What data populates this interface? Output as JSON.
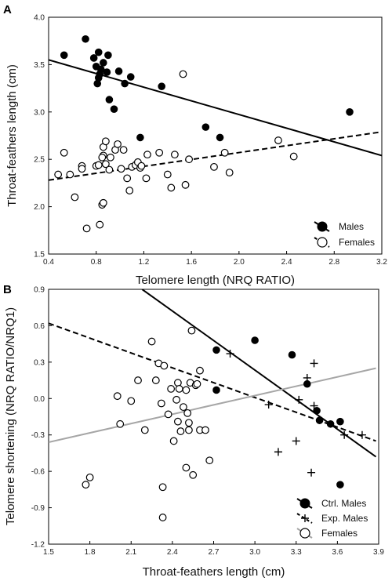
{
  "panels": {
    "A": {
      "label": "A"
    },
    "B": {
      "label": "B"
    }
  },
  "chart_data": [
    {
      "type": "scatter",
      "panel": "A",
      "xlabel": "Telomere length (NRQ RATIO)",
      "ylabel": "Throat-feathers length (cm)",
      "xlim": [
        0.4,
        3.2
      ],
      "ylim": [
        1.5,
        4.0
      ],
      "xticks": [
        "0.4",
        "0.8",
        "1.2",
        "1.6",
        "2.0",
        "2.4",
        "2.8",
        "3.2"
      ],
      "yticks": [
        "1.5",
        "2.0",
        "2.5",
        "3.0",
        "3.5",
        "4.0"
      ],
      "legend_position": "bottom-right",
      "series": [
        {
          "name": "Males",
          "marker": "filled-circle",
          "color": "#000000",
          "points": [
            [
              0.53,
              3.6
            ],
            [
              0.71,
              3.77
            ],
            [
              0.78,
              3.57
            ],
            [
              0.82,
              3.63
            ],
            [
              0.8,
              3.48
            ],
            [
              0.84,
              3.45
            ],
            [
              0.83,
              3.4
            ],
            [
              0.82,
              3.36
            ],
            [
              0.81,
              3.3
            ],
            [
              0.86,
              3.52
            ],
            [
              0.9,
              3.6
            ],
            [
              0.89,
              3.42
            ],
            [
              0.91,
              3.13
            ],
            [
              0.95,
              3.03
            ],
            [
              0.99,
              3.43
            ],
            [
              1.04,
              3.3
            ],
            [
              1.09,
              3.37
            ],
            [
              1.17,
              2.73
            ],
            [
              1.35,
              3.27
            ],
            [
              1.72,
              2.84
            ],
            [
              1.84,
              2.73
            ],
            [
              2.93,
              3.0
            ]
          ],
          "fit": [
            [
              0.4,
              3.55
            ],
            [
              3.2,
              2.54
            ]
          ],
          "fit_style": "solid"
        },
        {
          "name": "Females",
          "marker": "open-circle",
          "color": "#000000",
          "points": [
            [
              0.48,
              2.34
            ],
            [
              0.53,
              2.57
            ],
            [
              0.58,
              2.34
            ],
            [
              0.62,
              2.1
            ],
            [
              0.68,
              2.43
            ],
            [
              0.68,
              2.4
            ],
            [
              0.72,
              1.77
            ],
            [
              0.8,
              2.43
            ],
            [
              0.83,
              1.81
            ],
            [
              0.82,
              2.44
            ],
            [
              0.86,
              2.54
            ],
            [
              0.85,
              2.52
            ],
            [
              0.86,
              2.63
            ],
            [
              0.88,
              2.69
            ],
            [
              0.85,
              2.02
            ],
            [
              0.86,
              2.04
            ],
            [
              0.88,
              2.45
            ],
            [
              0.91,
              2.39
            ],
            [
              0.92,
              2.52
            ],
            [
              0.96,
              2.6
            ],
            [
              0.98,
              2.66
            ],
            [
              1.01,
              2.4
            ],
            [
              1.03,
              2.6
            ],
            [
              1.06,
              2.3
            ],
            [
              1.08,
              2.17
            ],
            [
              1.1,
              2.42
            ],
            [
              1.13,
              2.44
            ],
            [
              1.15,
              2.47
            ],
            [
              1.17,
              2.41
            ],
            [
              1.18,
              2.43
            ],
            [
              1.22,
              2.3
            ],
            [
              1.23,
              2.55
            ],
            [
              1.33,
              2.57
            ],
            [
              1.4,
              2.34
            ],
            [
              1.43,
              2.2
            ],
            [
              1.46,
              2.55
            ],
            [
              1.53,
              3.4
            ],
            [
              1.55,
              2.23
            ],
            [
              1.58,
              2.5
            ],
            [
              1.79,
              2.42
            ],
            [
              1.88,
              2.57
            ],
            [
              1.92,
              2.36
            ],
            [
              2.33,
              2.7
            ],
            [
              2.46,
              2.53
            ]
          ],
          "fit": [
            [
              0.4,
              2.28
            ],
            [
              3.2,
              2.79
            ]
          ],
          "fit_style": "dashed"
        }
      ]
    },
    {
      "type": "scatter",
      "panel": "B",
      "xlabel": "Throat-feathers length (cm)",
      "ylabel": "Telomere shortening (NRQ RATIO/NRQ1)",
      "xlim": [
        1.5,
        3.9
      ],
      "ylim": [
        -1.2,
        0.9
      ],
      "xticks": [
        "1.5",
        "1.8",
        "2.1",
        "2.4",
        "2.7",
        "3.0",
        "3.3",
        "3.6",
        "3.9"
      ],
      "yticks": [
        "-1.2",
        "-0.9",
        "-0.6",
        "-0.3",
        "0.0",
        "0.3",
        "0.6",
        "0.9"
      ],
      "legend_position": "bottom-right",
      "series": [
        {
          "name": "Ctrl. Males",
          "marker": "filled-circle",
          "color": "#000000",
          "points": [
            [
              2.72,
              0.4
            ],
            [
              2.72,
              0.07
            ],
            [
              3.0,
              0.48
            ],
            [
              3.27,
              0.36
            ],
            [
              3.38,
              0.12
            ],
            [
              3.45,
              -0.1
            ],
            [
              3.47,
              -0.18
            ],
            [
              3.55,
              -0.21
            ],
            [
              3.62,
              -0.19
            ],
            [
              3.62,
              -0.71
            ]
          ],
          "fit": [
            [
              2.18,
              0.9
            ],
            [
              3.88,
              -0.48
            ]
          ],
          "fit_style": "solid",
          "fit_color": "#000000"
        },
        {
          "name": "Exp. Males",
          "marker": "plus",
          "color": "#000000",
          "points": [
            [
              2.82,
              0.37
            ],
            [
              3.1,
              -0.05
            ],
            [
              3.17,
              -0.44
            ],
            [
              3.3,
              -0.35
            ],
            [
              3.32,
              -0.01
            ],
            [
              3.38,
              0.17
            ],
            [
              3.41,
              -0.61
            ],
            [
              3.43,
              0.29
            ],
            [
              3.43,
              -0.06
            ],
            [
              3.65,
              -0.3
            ],
            [
              3.78,
              -0.3
            ]
          ],
          "fit": [
            [
              1.5,
              0.62
            ],
            [
              3.88,
              -0.35
            ]
          ],
          "fit_style": "dashed",
          "fit_color": "#000000"
        },
        {
          "name": "Females",
          "marker": "open-circle",
          "color": "#000000",
          "points": [
            [
              1.77,
              -0.71
            ],
            [
              1.8,
              -0.65
            ],
            [
              2.0,
              0.02
            ],
            [
              2.02,
              -0.21
            ],
            [
              2.1,
              -0.02
            ],
            [
              2.15,
              0.15
            ],
            [
              2.2,
              -0.26
            ],
            [
              2.25,
              0.47
            ],
            [
              2.3,
              0.29
            ],
            [
              2.28,
              0.15
            ],
            [
              2.32,
              -0.04
            ],
            [
              2.34,
              0.27
            ],
            [
              2.33,
              -0.73
            ],
            [
              2.33,
              -0.98
            ],
            [
              2.37,
              -0.13
            ],
            [
              2.39,
              0.08
            ],
            [
              2.41,
              -0.35
            ],
            [
              2.43,
              -0.01
            ],
            [
              2.44,
              0.13
            ],
            [
              2.44,
              -0.19
            ],
            [
              2.45,
              0.08
            ],
            [
              2.46,
              -0.27
            ],
            [
              2.48,
              -0.07
            ],
            [
              2.5,
              -0.57
            ],
            [
              2.5,
              0.07
            ],
            [
              2.51,
              -0.12
            ],
            [
              2.52,
              -0.2
            ],
            [
              2.52,
              -0.26
            ],
            [
              2.53,
              0.13
            ],
            [
              2.54,
              0.56
            ],
            [
              2.55,
              -0.63
            ],
            [
              2.57,
              0.11
            ],
            [
              2.58,
              0.12
            ],
            [
              2.6,
              0.23
            ],
            [
              2.6,
              -0.26
            ],
            [
              2.64,
              -0.26
            ],
            [
              2.67,
              -0.51
            ]
          ],
          "fit": [
            [
              1.5,
              -0.36
            ],
            [
              3.88,
              0.25
            ]
          ],
          "fit_style": "solid",
          "fit_color": "#a6a6a6"
        }
      ]
    }
  ]
}
